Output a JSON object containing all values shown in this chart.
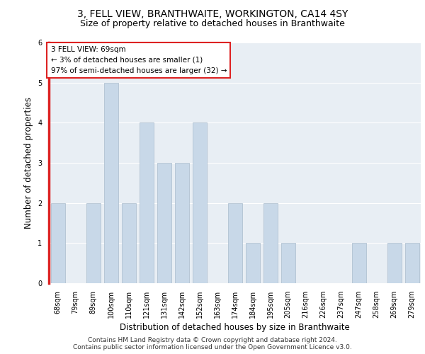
{
  "title1": "3, FELL VIEW, BRANTHWAITE, WORKINGTON, CA14 4SY",
  "title2": "Size of property relative to detached houses in Branthwaite",
  "xlabel": "Distribution of detached houses by size in Branthwaite",
  "ylabel": "Number of detached properties",
  "categories": [
    "68sqm",
    "79sqm",
    "89sqm",
    "100sqm",
    "110sqm",
    "121sqm",
    "131sqm",
    "142sqm",
    "152sqm",
    "163sqm",
    "174sqm",
    "184sqm",
    "195sqm",
    "205sqm",
    "216sqm",
    "226sqm",
    "237sqm",
    "247sqm",
    "258sqm",
    "269sqm",
    "279sqm"
  ],
  "values": [
    2,
    0,
    2,
    5,
    2,
    4,
    3,
    3,
    4,
    0,
    2,
    1,
    2,
    1,
    0,
    0,
    0,
    1,
    0,
    1,
    1
  ],
  "bar_color": "#c8d8e8",
  "bar_edgecolor": "#aabccc",
  "highlight_color": "#dd2222",
  "annotation_box_text": "3 FELL VIEW: 69sqm\n← 3% of detached houses are smaller (1)\n97% of semi-detached houses are larger (32) →",
  "annotation_box_edgecolor": "#dd2222",
  "ylim": [
    0,
    6
  ],
  "yticks": [
    0,
    1,
    2,
    3,
    4,
    5,
    6
  ],
  "background_color": "#e8eef4",
  "footer1": "Contains HM Land Registry data © Crown copyright and database right 2024.",
  "footer2": "Contains public sector information licensed under the Open Government Licence v3.0.",
  "title1_fontsize": 10,
  "title2_fontsize": 9,
  "xlabel_fontsize": 8.5,
  "ylabel_fontsize": 8.5,
  "tick_fontsize": 7,
  "annotation_fontsize": 7.5,
  "footer_fontsize": 6.5
}
